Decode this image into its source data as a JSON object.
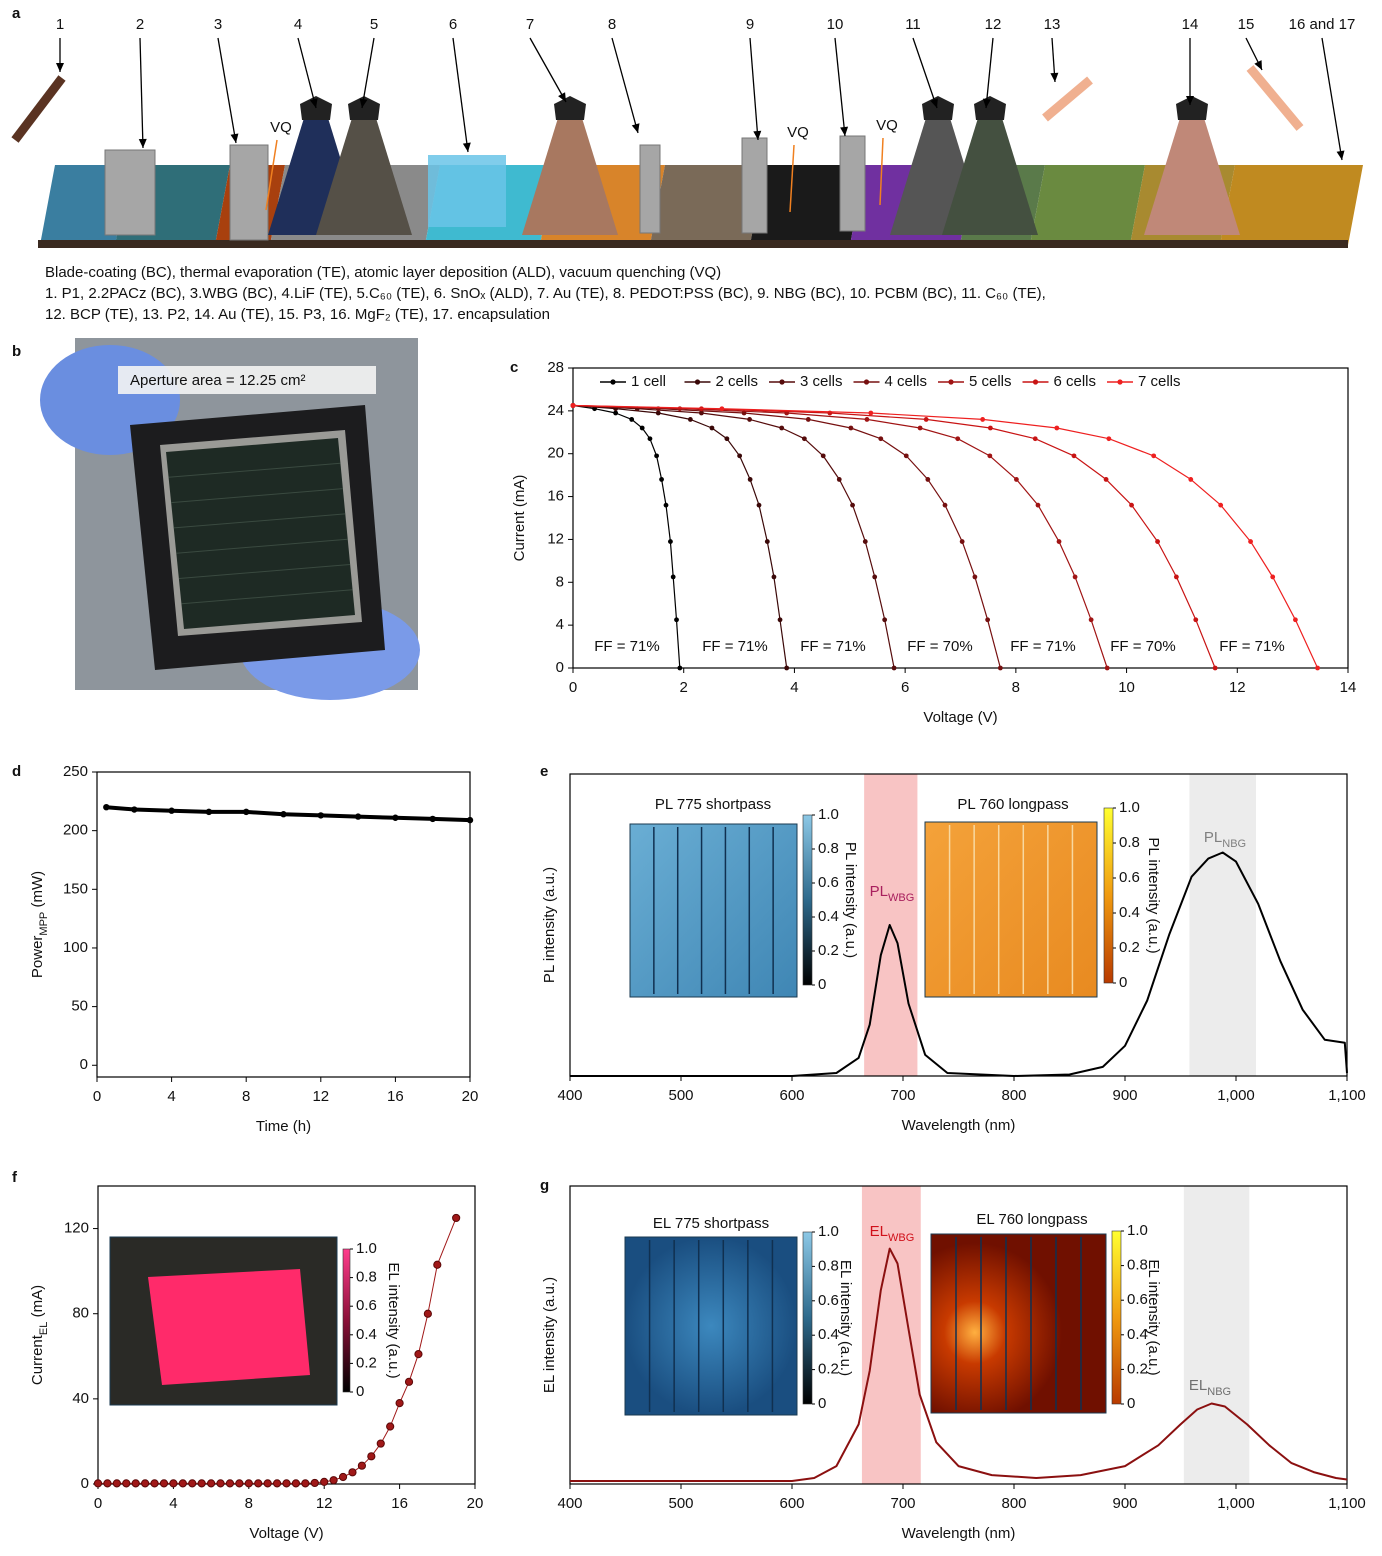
{
  "panels": [
    "a",
    "b",
    "c",
    "d",
    "e",
    "f",
    "g"
  ],
  "panel_a": {
    "labels": [
      "1",
      "2",
      "3",
      "4",
      "5",
      "6",
      "7",
      "8",
      "9",
      "10",
      "11",
      "12",
      "13",
      "14",
      "15",
      "16 and 17"
    ],
    "vq": [
      "VQ",
      "VQ",
      "VQ"
    ],
    "caption": [
      "Blade-coating (BC), thermal evaporation (TE), atomic layer deposition (ALD), vacuum quenching (VQ)",
      "1. P1, 2.2PACz (BC), 3.WBG (BC), 4.LiF (TE), 5.C₆₀ (TE), 6. SnOₓ (ALD), 7. Au (TE), 8. PEDOT:PSS (BC), 9. NBG (BC), 10. PCBM (BC), 11. C₆₀ (TE),",
      "12. BCP (TE), 13. P2, 14. Au (TE), 15. P3, 16. MgF₂ (TE), 17. encapsulation"
    ]
  },
  "panel_b": {
    "label": "Aperture area = 12.25 cm²"
  },
  "chart_data": [
    {
      "type": "line",
      "xlabel": "Voltage (V)",
      "ylabel": "Current (mA)",
      "xlim": [
        0,
        14
      ],
      "xticks": [
        0,
        2,
        4,
        6,
        8,
        10,
        12,
        14
      ],
      "ylim": [
        0,
        28
      ],
      "yticks": [
        0,
        4,
        8,
        12,
        16,
        20,
        24,
        28
      ],
      "markers": true,
      "legend": "top",
      "annotations": [
        "FF = 71%",
        "FF = 71%",
        "FF = 71%",
        "FF = 70%",
        "FF = 71%",
        "FF = 70%",
        "FF = 71%"
      ],
      "series": [
        {
          "name": "1 cell",
          "color": "#000000",
          "x": [
            0,
            0.39,
            0.77,
            1.06,
            1.25,
            1.39,
            1.51,
            1.6,
            1.68,
            1.76,
            1.81,
            1.87,
            1.93
          ],
          "values": [
            24.5,
            24.2,
            23.8,
            23.2,
            22.4,
            21.4,
            19.8,
            17.6,
            15.2,
            11.8,
            8.5,
            4.5,
            0
          ]
        },
        {
          "name": "2 cells",
          "color": "#3a0808",
          "x": [
            0,
            0.77,
            1.54,
            2.12,
            2.51,
            2.78,
            3.01,
            3.2,
            3.36,
            3.51,
            3.63,
            3.74,
            3.86
          ],
          "values": [
            24.5,
            24.2,
            23.8,
            23.2,
            22.4,
            21.4,
            19.8,
            17.6,
            15.2,
            11.8,
            8.5,
            4.5,
            0
          ]
        },
        {
          "name": "3 cells",
          "color": "#560c0c",
          "x": [
            0,
            1.16,
            2.32,
            3.19,
            3.77,
            4.18,
            4.52,
            4.81,
            5.05,
            5.28,
            5.45,
            5.63,
            5.8
          ],
          "values": [
            24.5,
            24.2,
            23.8,
            23.2,
            22.4,
            21.4,
            19.8,
            17.6,
            15.2,
            11.8,
            8.5,
            4.5,
            0
          ]
        },
        {
          "name": "4 cells",
          "color": "#761010",
          "x": [
            0,
            1.54,
            3.09,
            4.25,
            5.02,
            5.56,
            6.02,
            6.41,
            6.72,
            7.03,
            7.26,
            7.49,
            7.72
          ],
          "values": [
            24.5,
            24.2,
            23.8,
            23.2,
            22.4,
            21.4,
            19.8,
            17.6,
            15.2,
            11.8,
            8.5,
            4.5,
            0
          ]
        },
        {
          "name": "5 cells",
          "color": "#a01414",
          "x": [
            0,
            1.93,
            3.86,
            5.31,
            6.27,
            6.95,
            7.53,
            8.01,
            8.4,
            8.78,
            9.07,
            9.36,
            9.65
          ],
          "values": [
            24.5,
            24.2,
            23.8,
            23.2,
            22.4,
            21.4,
            19.8,
            17.6,
            15.2,
            11.8,
            8.5,
            4.5,
            0
          ]
        },
        {
          "name": "6 cells",
          "color": "#c81414",
          "x": [
            0,
            2.32,
            4.64,
            6.38,
            7.54,
            8.35,
            9.05,
            9.63,
            10.09,
            10.56,
            10.9,
            11.25,
            11.6
          ],
          "values": [
            24.5,
            24.2,
            23.8,
            23.2,
            22.4,
            21.4,
            19.8,
            17.6,
            15.2,
            11.8,
            8.5,
            4.5,
            0
          ]
        },
        {
          "name": "7 cells",
          "color": "#ee2020",
          "x": [
            0,
            2.69,
            5.38,
            7.4,
            8.74,
            9.68,
            10.49,
            11.16,
            11.7,
            12.24,
            12.64,
            13.05,
            13.45
          ],
          "values": [
            24.5,
            24.2,
            23.8,
            23.2,
            22.4,
            21.4,
            19.8,
            17.6,
            15.2,
            11.8,
            8.5,
            4.5,
            0
          ]
        }
      ]
    },
    {
      "type": "line",
      "xlabel": "Time (h)",
      "ylabel": {
        "text": "Power",
        "sub": "MPP",
        "unit": " (mW)"
      },
      "xlim": [
        0,
        20
      ],
      "xticks": [
        0,
        4,
        8,
        12,
        16,
        20
      ],
      "ylim": [
        -10,
        250
      ],
      "yticks": [
        0,
        50,
        100,
        150,
        200,
        250
      ],
      "series": [
        {
          "color": "#000000",
          "x": [
            0.5,
            2,
            4,
            6,
            8,
            10,
            12,
            14,
            16,
            18,
            20
          ],
          "values": [
            220,
            218,
            217,
            216,
            216,
            214,
            213,
            212,
            211,
            210,
            209
          ]
        }
      ]
    },
    {
      "type": "line",
      "xlabel": "Wavelength (nm)",
      "ylabel": "PL intensity (a.u.)",
      "xlim": [
        400,
        1100
      ],
      "xticks": [
        400,
        500,
        600,
        700,
        800,
        900,
        {
          "value": 1000,
          "label": "1,000"
        },
        {
          "value": 1100,
          "label": "1,100"
        }
      ],
      "ylim": [
        0,
        1
      ],
      "bands": [
        {
          "range": [
            665,
            713
          ],
          "color": "#f8c4c4"
        },
        {
          "range": [
            958,
            1018
          ],
          "color": "#ececec"
        }
      ],
      "annotations": [
        {
          "text": "PL",
          "sub": "WBG",
          "color": "#a8205e"
        },
        {
          "text": "PL",
          "sub": "NBG",
          "color": "#808080"
        }
      ],
      "insets": [
        {
          "title": "PL 775 shortpass",
          "colorbar_label": "PL intensity (a.u.)",
          "ticks": [
            0,
            0.2,
            0.4,
            0.6,
            0.8,
            {
              "value": 1,
              "label": "1.0"
            }
          ]
        },
        {
          "title": "PL 760 longpass",
          "colorbar_label": "PL intensity (a.u.)",
          "ticks": [
            0,
            0.2,
            0.4,
            0.6,
            0.8,
            {
              "value": 1,
              "label": "1.0"
            }
          ]
        }
      ],
      "series": [
        {
          "color": "#000000",
          "x": [
            400,
            600,
            640,
            660,
            670,
            680,
            688,
            695,
            705,
            720,
            740,
            800,
            850,
            880,
            900,
            920,
            940,
            960,
            975,
            988,
            1000,
            1020,
            1040,
            1060,
            1080,
            1098,
            1100
          ],
          "values": [
            0,
            0,
            0.01,
            0.06,
            0.17,
            0.4,
            0.5,
            0.44,
            0.24,
            0.07,
            0.01,
            0,
            0.005,
            0.03,
            0.1,
            0.25,
            0.47,
            0.66,
            0.72,
            0.74,
            0.71,
            0.57,
            0.38,
            0.22,
            0.12,
            0.11,
            0.01
          ]
        }
      ]
    },
    {
      "type": "scatter",
      "xlabel": "Voltage (V)",
      "ylabel": {
        "text": "Current",
        "sub": "EL",
        "unit": " (mA)"
      },
      "xlim": [
        0,
        20
      ],
      "xticks": [
        0,
        4,
        8,
        12,
        16,
        20
      ],
      "ylim": [
        0,
        140
      ],
      "yticks": [
        0,
        40,
        80,
        120
      ],
      "insets": [
        {
          "colorbar_label": "EL intensity (a.u.)",
          "ticks": [
            0,
            0.2,
            0.4,
            0.6,
            0.8,
            {
              "value": 1,
              "label": "1.0"
            }
          ]
        }
      ],
      "series": [
        {
          "color": "#a01818",
          "x": [
            0,
            0.5,
            1,
            1.5,
            2,
            2.5,
            3,
            3.5,
            4,
            4.5,
            5,
            5.5,
            6,
            6.5,
            7,
            7.5,
            8,
            8.5,
            9,
            9.5,
            10,
            10.5,
            11,
            11.5,
            12,
            12.5,
            13,
            13.5,
            14,
            14.5,
            15,
            15.5,
            16,
            16.5,
            17,
            17.5,
            18,
            19
          ],
          "values": [
            0.3,
            0.3,
            0.3,
            0.3,
            0.3,
            0.3,
            0.3,
            0.3,
            0.3,
            0.3,
            0.3,
            0.3,
            0.3,
            0.3,
            0.3,
            0.3,
            0.3,
            0.3,
            0.3,
            0.3,
            0.3,
            0.3,
            0.3,
            0.5,
            1,
            1.8,
            3.3,
            5.5,
            8.6,
            13,
            19,
            27,
            38,
            48,
            61,
            80,
            103,
            125
          ]
        }
      ]
    },
    {
      "type": "line",
      "xlabel": "Wavelength (nm)",
      "ylabel": "EL intensity (a.u.)",
      "xlim": [
        400,
        1100
      ],
      "xticks": [
        400,
        500,
        600,
        700,
        800,
        900,
        {
          "value": 1000,
          "label": "1,000"
        },
        {
          "value": 1100,
          "label": "1,100"
        }
      ],
      "ylim": [
        0,
        1
      ],
      "bands": [
        {
          "range": [
            663,
            716
          ],
          "color": "#f8c4c4"
        },
        {
          "range": [
            953,
            1012
          ],
          "color": "#ececec"
        }
      ],
      "annotations": [
        {
          "text": "EL",
          "sub": "WBG",
          "color": "#d0101a"
        },
        {
          "text": "EL",
          "sub": "NBG",
          "color": "#707070"
        }
      ],
      "insets": [
        {
          "title": "EL 775 shortpass",
          "colorbar_label": "EL intensity (a.u.)",
          "ticks": [
            0,
            0.2,
            0.4,
            0.6,
            0.8,
            {
              "value": 1,
              "label": "1.0"
            }
          ]
        },
        {
          "title": "EL 760 longpass",
          "colorbar_label": "EL intensity (a.u.)",
          "ticks": [
            0,
            0.2,
            0.4,
            0.6,
            0.8,
            {
              "value": 1,
              "label": "1.0"
            }
          ]
        }
      ],
      "series": [
        {
          "color": "#8b1010",
          "x": [
            400,
            600,
            620,
            640,
            660,
            670,
            680,
            688,
            695,
            705,
            715,
            730,
            750,
            780,
            820,
            860,
            900,
            930,
            950,
            965,
            978,
            990,
            1010,
            1030,
            1050,
            1070,
            1090,
            1100
          ],
          "values": [
            0.01,
            0.01,
            0.02,
            0.06,
            0.2,
            0.38,
            0.65,
            0.79,
            0.74,
            0.52,
            0.3,
            0.14,
            0.06,
            0.03,
            0.02,
            0.03,
            0.06,
            0.13,
            0.2,
            0.25,
            0.27,
            0.26,
            0.2,
            0.13,
            0.07,
            0.04,
            0.02,
            0.015
          ]
        }
      ]
    }
  ]
}
